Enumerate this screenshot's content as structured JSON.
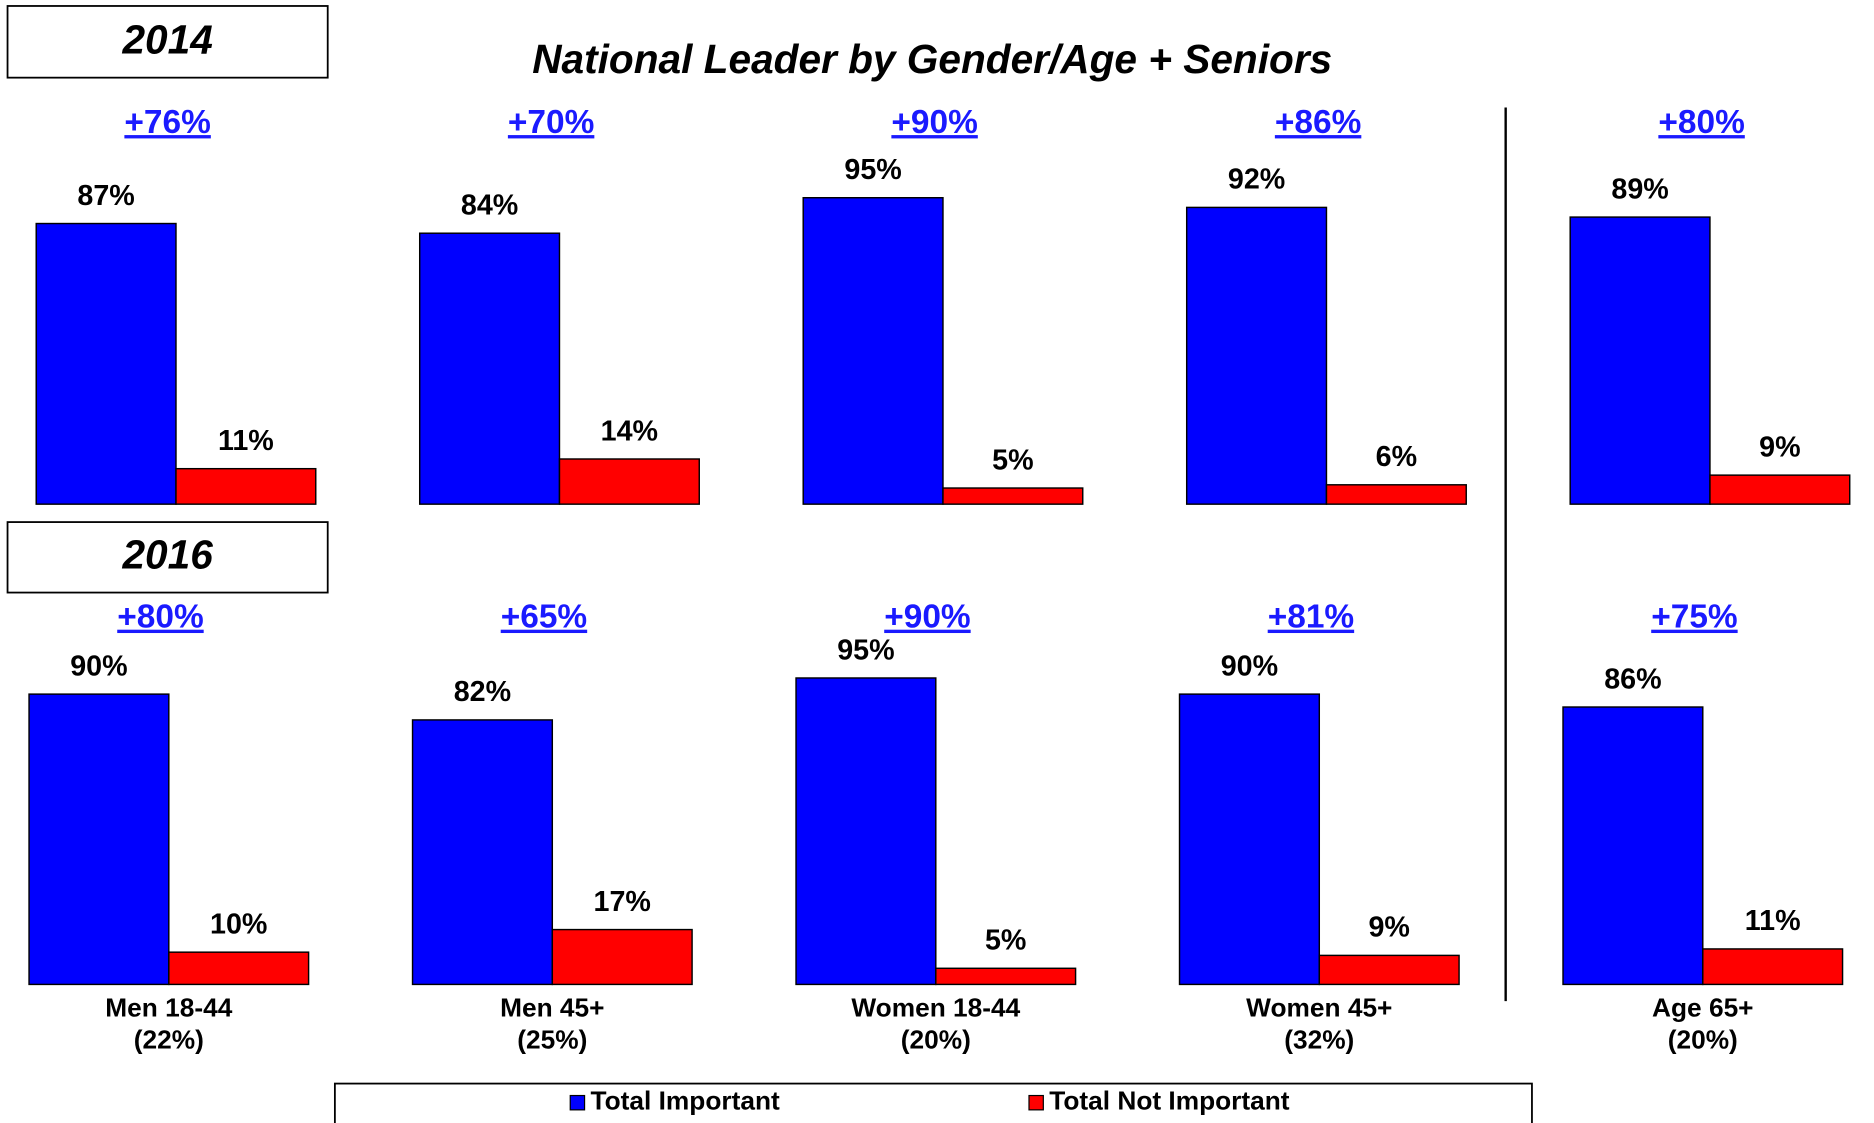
{
  "title": "National Leader by Gender/Age + Seniors",
  "categories": [
    "Men 18-44",
    "Men 45+",
    "Women 18-44",
    "Women 45+",
    "Age 65+"
  ],
  "category_notes": [
    "(22%)",
    "(25%)",
    "(20%)",
    "(32%)",
    "(20%)"
  ],
  "chart_data": [
    {
      "type": "bar",
      "label": "2014",
      "annotations": [
        "+76%",
        "+70%",
        "+90%",
        "+86%",
        "+80%"
      ],
      "series": [
        {
          "name": "Total Important",
          "color": "#0000ff",
          "values": [
            87,
            84,
            95,
            92,
            89
          ],
          "value_labels": [
            "87%",
            "84%",
            "95%",
            "92%",
            "89%"
          ]
        },
        {
          "name": "Total Not Important",
          "color": "#ff0000",
          "values": [
            11,
            14,
            5,
            6,
            9
          ],
          "value_labels": [
            "11%",
            "14%",
            "5%",
            "6%",
            "9%"
          ]
        }
      ]
    },
    {
      "type": "bar",
      "label": "2016",
      "annotations": [
        "+80%",
        "+65%",
        "+90%",
        "+81%",
        "+75%"
      ],
      "series": [
        {
          "color": "#0000ff",
          "values": [
            90,
            82,
            95,
            90,
            86
          ],
          "value_labels": [
            "90%",
            "82%",
            "95%",
            "90%",
            "86%"
          ]
        },
        {
          "color": "#ff0000",
          "values": [
            10,
            17,
            5,
            9,
            11
          ],
          "value_labels": [
            "10%",
            "17%",
            "5%",
            "9%",
            "11%"
          ]
        }
      ]
    }
  ]
}
